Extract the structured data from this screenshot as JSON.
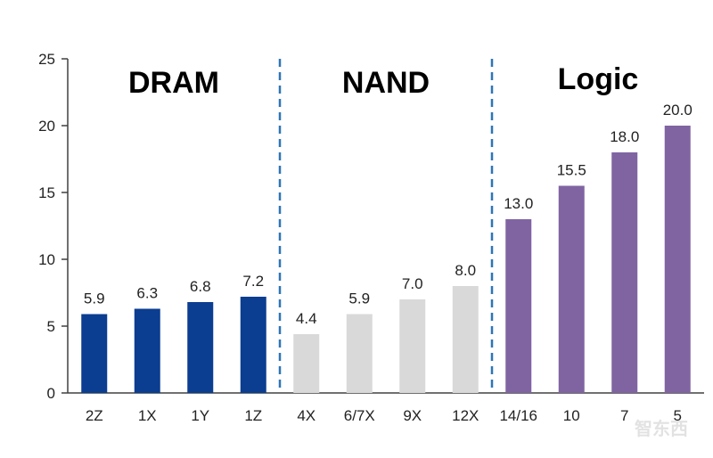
{
  "chart_data": {
    "type": "bar",
    "title": "",
    "xlabel": "",
    "ylabel": "",
    "ylim": [
      0,
      25
    ],
    "yticks": [
      0,
      5,
      10,
      15,
      20,
      25
    ],
    "grid": false,
    "categories": [
      "2Z",
      "1X",
      "1Y",
      "1Z",
      "4X",
      "6/7X",
      "9X",
      "12X",
      "14/16",
      "10",
      "7",
      "5"
    ],
    "values": [
      5.9,
      6.3,
      6.8,
      7.2,
      4.4,
      5.9,
      7.0,
      8.0,
      13.0,
      15.5,
      18.0,
      20.0
    ],
    "value_labels": [
      "5.9",
      "6.3",
      "6.8",
      "7.2",
      "4.4",
      "5.9",
      "7.0",
      "8.0",
      "13.0",
      "15.5",
      "18.0",
      "20.0"
    ],
    "groups": [
      {
        "name": "DRAM",
        "start": 0,
        "count": 4,
        "color": "#0b3d91"
      },
      {
        "name": "NAND",
        "start": 4,
        "count": 4,
        "color": "#d9d9d9"
      },
      {
        "name": "Logic",
        "start": 8,
        "count": 4,
        "color": "#8064a2"
      }
    ],
    "separator_color": "#2e75b6",
    "watermark": "智东西"
  }
}
